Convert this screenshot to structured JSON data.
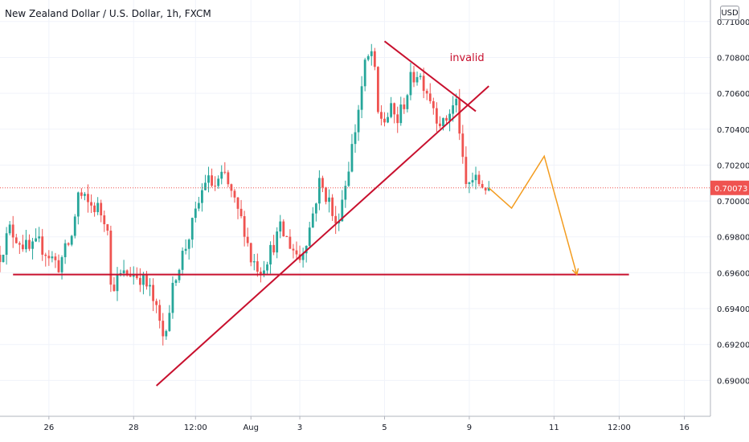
{
  "header": {
    "symbol_title": "New Zealand Dollar / U.S. Dollar, 1h, FXCM",
    "currency_button": "USD"
  },
  "colors": {
    "up_candle": "#26a69a",
    "down_candle": "#ef5350",
    "annotation_red": "#c8102e",
    "projection_orange": "#f39c1f",
    "last_price_bg": "#ef5350",
    "grid": "#f0f3fa",
    "axis_text": "#131722"
  },
  "chart_data": {
    "type": "candlestick",
    "instrument": "NZD/USD",
    "timeframe": "1h",
    "source": "FXCM",
    "ylim": [
      0.688,
      0.7112
    ],
    "y_ticks": [
      0.71,
      0.708,
      0.706,
      0.704,
      0.702,
      0.7,
      0.698,
      0.696,
      0.694,
      0.692,
      0.69
    ],
    "y_tick_labels": [
      "0.71000",
      "0.70800",
      "0.70600",
      "0.70400",
      "0.70200",
      "0.70000",
      "0.69800",
      "0.69600",
      "0.69400",
      "0.69200",
      "0.69000"
    ],
    "last_price": 0.70073,
    "last_price_label": "0.70073",
    "x_index_range": [
      0,
      218
    ],
    "last_bar_index": 150,
    "x_ticks": [
      {
        "label": "26",
        "i": 15
      },
      {
        "label": "28",
        "i": 41
      },
      {
        "label": "12:00",
        "i": 60
      },
      {
        "label": "Aug",
        "i": 77
      },
      {
        "label": "3",
        "i": 92
      },
      {
        "label": "5",
        "i": 118
      },
      {
        "label": "9",
        "i": 144
      },
      {
        "label": "11",
        "i": 170
      },
      {
        "label": "12:00",
        "i": 190
      },
      {
        "label": "16",
        "i": 210
      }
    ],
    "price_path": [
      [
        0,
        0.697
      ],
      [
        3,
        0.6984
      ],
      [
        6,
        0.6978
      ],
      [
        9,
        0.6972
      ],
      [
        12,
        0.6976
      ],
      [
        15,
        0.697
      ],
      [
        18,
        0.6964
      ],
      [
        22,
        0.698
      ],
      [
        24,
        0.7004
      ],
      [
        27,
        0.6998
      ],
      [
        30,
        0.6996
      ],
      [
        33,
        0.6988
      ],
      [
        34,
        0.6952
      ],
      [
        37,
        0.6958
      ],
      [
        40,
        0.696
      ],
      [
        43,
        0.6958
      ],
      [
        46,
        0.695
      ],
      [
        48,
        0.6938
      ],
      [
        50,
        0.6925
      ],
      [
        52,
        0.694
      ],
      [
        54,
        0.696
      ],
      [
        57,
        0.6975
      ],
      [
        60,
        0.6992
      ],
      [
        63,
        0.7012
      ],
      [
        66,
        0.7008
      ],
      [
        69,
        0.7014
      ],
      [
        72,
        0.6998
      ],
      [
        75,
        0.6985
      ],
      [
        77,
        0.6968
      ],
      [
        80,
        0.6962
      ],
      [
        83,
        0.6972
      ],
      [
        86,
        0.6984
      ],
      [
        89,
        0.6976
      ],
      [
        92,
        0.6968
      ],
      [
        95,
        0.6985
      ],
      [
        98,
        0.701
      ],
      [
        101,
        0.7
      ],
      [
        103,
        0.6985
      ],
      [
        106,
        0.701
      ],
      [
        109,
        0.704
      ],
      [
        112,
        0.7075
      ],
      [
        114,
        0.7083
      ],
      [
        115,
        0.707
      ],
      [
        116,
        0.7048
      ],
      [
        118,
        0.7045
      ],
      [
        120,
        0.705
      ],
      [
        122,
        0.7045
      ],
      [
        124,
        0.7055
      ],
      [
        126,
        0.7067
      ],
      [
        128,
        0.7072
      ],
      [
        130,
        0.7066
      ],
      [
        132,
        0.7058
      ],
      [
        134,
        0.7048
      ],
      [
        136,
        0.7042
      ],
      [
        138,
        0.705
      ],
      [
        140,
        0.7055
      ],
      [
        141,
        0.704
      ],
      [
        142,
        0.702
      ],
      [
        143,
        0.7008
      ],
      [
        145,
        0.7012
      ],
      [
        147,
        0.701
      ],
      [
        150,
        0.70073
      ]
    ],
    "annotations": {
      "invalid_label": "invalid",
      "ascending_trendline": [
        [
          48,
          0.6897
        ],
        [
          150,
          0.7064
        ]
      ],
      "descending_trendline": [
        [
          118,
          0.7089
        ],
        [
          146,
          0.705
        ]
      ],
      "horizontal_support": {
        "price": 0.6959,
        "from": 4,
        "to": 193
      },
      "projection_path": [
        [
          150,
          0.70073
        ],
        [
          157,
          0.6996
        ],
        [
          167,
          0.7025
        ],
        [
          177,
          0.6959
        ]
      ]
    }
  }
}
